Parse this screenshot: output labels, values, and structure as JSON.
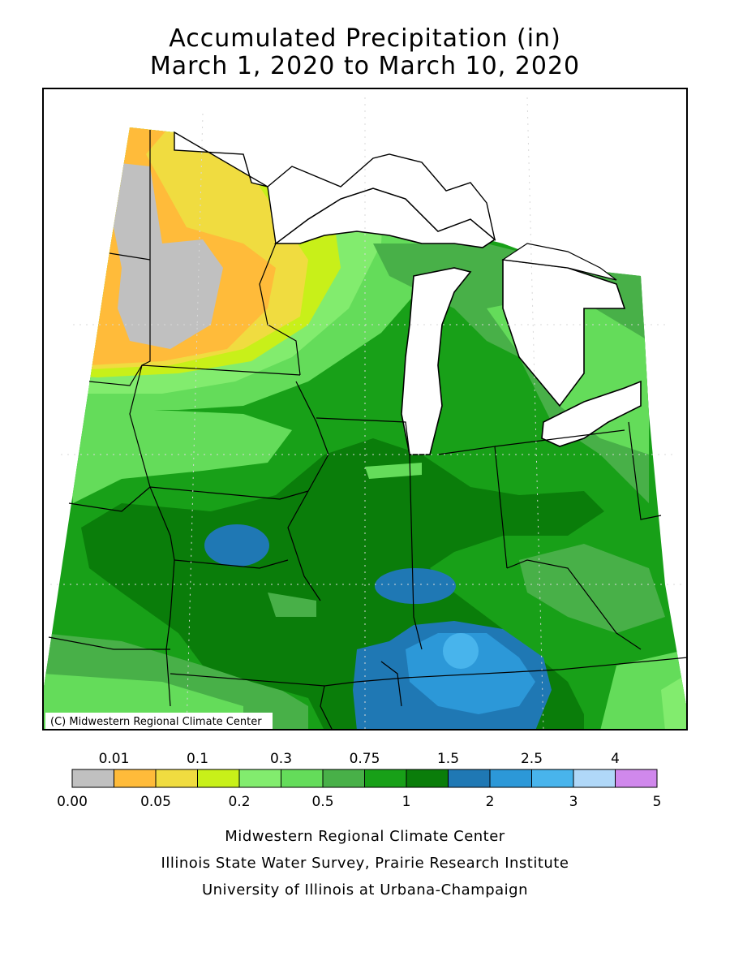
{
  "title": {
    "line1": "Accumulated Precipitation (in)",
    "line2": "March 1, 2020 to March 10, 2020"
  },
  "map": {
    "watermark": "(C) Midwestern Regional Climate Center",
    "water_color": "#ffffff",
    "region_fill": "#1a9e1a"
  },
  "legend": {
    "upper_labels": [
      "0.01",
      "0.1",
      "0.3",
      "0.75",
      "1.5",
      "2.5",
      "4"
    ],
    "lower_labels": [
      "0.00",
      "0.05",
      "0.2",
      "0.5",
      "1",
      "2",
      "3",
      "5"
    ],
    "colors": [
      "#c0c0c0",
      "#ffbb3a",
      "#f0dc40",
      "#c8f019",
      "#82ec6e",
      "#64dc5a",
      "#48b048",
      "#18a018",
      "#0a7d0a",
      "#1f78b4",
      "#2c98d8",
      "#48b4ec",
      "#b0d8f8",
      "#d088ec"
    ]
  },
  "credits": [
    "Midwestern Regional Climate Center",
    "Illinois State Water Survey, Prairie Research Institute",
    "University of Illinois at Urbana-Champaign"
  ]
}
